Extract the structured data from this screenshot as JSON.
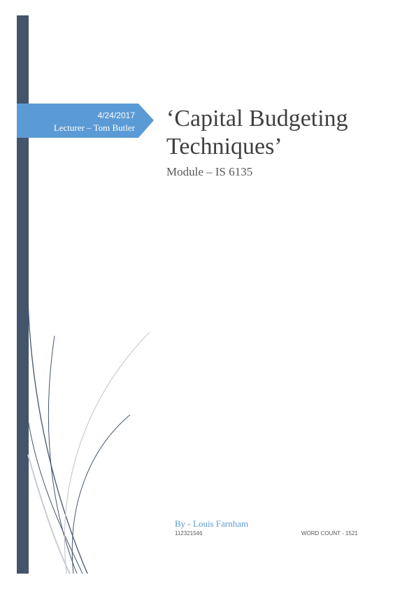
{
  "banner": {
    "date": "4/24/2017",
    "lecturer": "Lecturer – Tom Butler"
  },
  "title": {
    "line1": "‘Capital Budgeting",
    "line2": "Techniques’",
    "subtitle": "Module – IS 6135"
  },
  "footer": {
    "author": "By - Louis Farnham",
    "student_id": "112321546",
    "word_count": "WORD COUNT - 1521"
  }
}
